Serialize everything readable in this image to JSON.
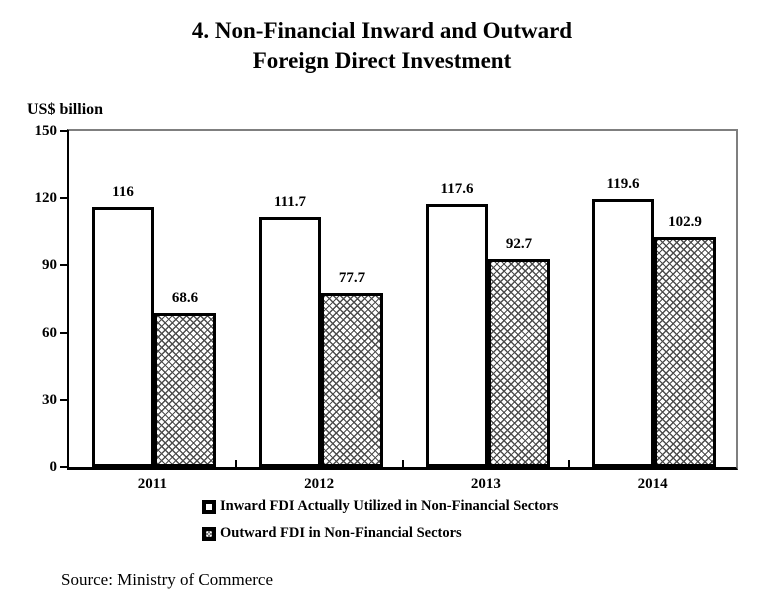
{
  "figure": {
    "title_lines": [
      "4. Non-Financial Inward and Outward",
      "Foreign Direct Investment"
    ],
    "source": "Source: Ministry of Commerce"
  },
  "chart_data": {
    "type": "bar",
    "title": "4. Non-Financial Inward and Outward Foreign Direct Investment",
    "xlabel": "",
    "ylabel": "US$ billion",
    "ylim": [
      0,
      150
    ],
    "y_ticks": [
      0,
      30,
      60,
      90,
      120,
      150
    ],
    "grid": false,
    "legend_position": "bottom",
    "categories": [
      "2011",
      "2012",
      "2013",
      "2014"
    ],
    "series": [
      {
        "name": "Inward FDI Actually Utilized in Non-Financial Sectors",
        "fill": "solid-white",
        "values": [
          116,
          111.7,
          117.6,
          119.6
        ],
        "labels": [
          "116",
          "111.7",
          "117.6",
          "119.6"
        ]
      },
      {
        "name": "Outward FDI in Non-Financial Sectors",
        "fill": "crosshatch",
        "values": [
          68.6,
          77.7,
          92.7,
          102.9
        ],
        "labels": [
          "68.6",
          "77.7",
          "92.7",
          "102.9"
        ]
      }
    ],
    "colors": {
      "background": "#ffffff",
      "bar_border": "#000000",
      "hatch_line": "#4d4d4d",
      "outer_border": "#7f7f7f"
    }
  }
}
